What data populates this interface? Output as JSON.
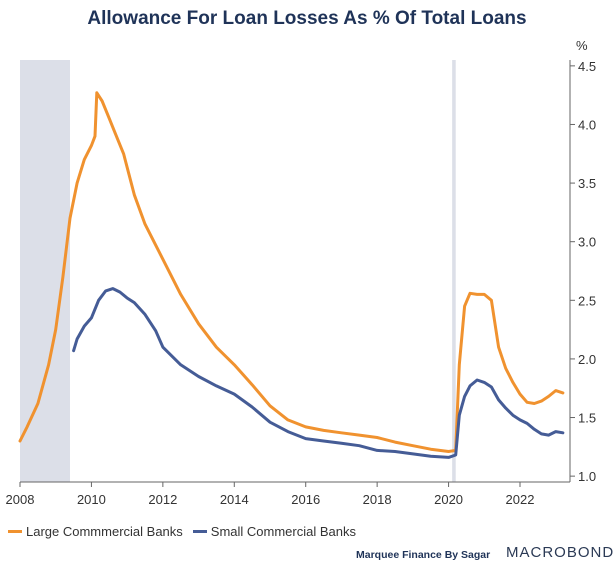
{
  "chart_data": {
    "type": "line",
    "title": "Allowance For Loan Losses As % Of Total Loans",
    "ylabel": "%",
    "xlim": [
      2008,
      2023.4
    ],
    "ylim": [
      0.95,
      4.55
    ],
    "x_ticks": [
      "2008",
      "2010",
      "2012",
      "2014",
      "2016",
      "2018",
      "2020",
      "2022"
    ],
    "y_ticks": [
      "1.0",
      "1.5",
      "2.0",
      "2.5",
      "3.0",
      "3.5",
      "4.0",
      "4.5"
    ],
    "recession_bands": [
      [
        2008.0,
        2009.4
      ],
      [
        2020.1,
        2020.2
      ]
    ],
    "series": [
      {
        "name": "Large Commmercial Banks",
        "color": "#f0922f",
        "x": [
          2008.0,
          2008.2,
          2008.5,
          2008.8,
          2009.0,
          2009.2,
          2009.4,
          2009.6,
          2009.8,
          2010.0,
          2010.1,
          2010.15,
          2010.3,
          2010.5,
          2010.7,
          2010.9,
          2011.2,
          2011.5,
          2012.0,
          2012.5,
          2013.0,
          2013.5,
          2014.0,
          2014.5,
          2015.0,
          2015.5,
          2016.0,
          2016.5,
          2017.0,
          2017.5,
          2018.0,
          2018.5,
          2019.0,
          2019.5,
          2020.0,
          2020.2,
          2020.3,
          2020.45,
          2020.6,
          2020.8,
          2021.0,
          2021.2,
          2021.4,
          2021.6,
          2021.8,
          2022.0,
          2022.2,
          2022.4,
          2022.6,
          2022.8,
          2023.0,
          2023.2
        ],
        "y": [
          1.3,
          1.42,
          1.62,
          1.95,
          2.25,
          2.7,
          3.2,
          3.5,
          3.7,
          3.82,
          3.9,
          4.27,
          4.2,
          4.05,
          3.9,
          3.75,
          3.4,
          3.15,
          2.85,
          2.55,
          2.3,
          2.1,
          1.95,
          1.78,
          1.6,
          1.48,
          1.42,
          1.39,
          1.37,
          1.35,
          1.33,
          1.29,
          1.26,
          1.23,
          1.21,
          1.22,
          1.95,
          2.45,
          2.56,
          2.55,
          2.55,
          2.5,
          2.1,
          1.92,
          1.8,
          1.7,
          1.63,
          1.62,
          1.64,
          1.68,
          1.73,
          1.71
        ]
      },
      {
        "name": "Small Commercial Banks",
        "color": "#455c96",
        "x": [
          2009.5,
          2009.6,
          2009.8,
          2010.0,
          2010.2,
          2010.4,
          2010.6,
          2010.8,
          2011.0,
          2011.2,
          2011.5,
          2011.8,
          2012.0,
          2012.5,
          2013.0,
          2013.5,
          2014.0,
          2014.5,
          2015.0,
          2015.5,
          2016.0,
          2016.5,
          2017.0,
          2017.5,
          2018.0,
          2018.5,
          2019.0,
          2019.5,
          2020.0,
          2020.2,
          2020.3,
          2020.45,
          2020.6,
          2020.8,
          2021.0,
          2021.2,
          2021.4,
          2021.6,
          2021.8,
          2022.0,
          2022.2,
          2022.4,
          2022.6,
          2022.8,
          2023.0,
          2023.2
        ],
        "y": [
          2.07,
          2.17,
          2.28,
          2.35,
          2.5,
          2.58,
          2.6,
          2.57,
          2.52,
          2.48,
          2.38,
          2.24,
          2.1,
          1.95,
          1.85,
          1.77,
          1.7,
          1.59,
          1.46,
          1.38,
          1.32,
          1.3,
          1.28,
          1.26,
          1.22,
          1.21,
          1.19,
          1.17,
          1.16,
          1.18,
          1.52,
          1.68,
          1.77,
          1.82,
          1.8,
          1.76,
          1.65,
          1.58,
          1.52,
          1.48,
          1.45,
          1.4,
          1.36,
          1.35,
          1.38,
          1.37
        ]
      }
    ]
  },
  "footer": {
    "credit": "Marquee Finance By Sagar",
    "brand": "MACROBOND"
  }
}
